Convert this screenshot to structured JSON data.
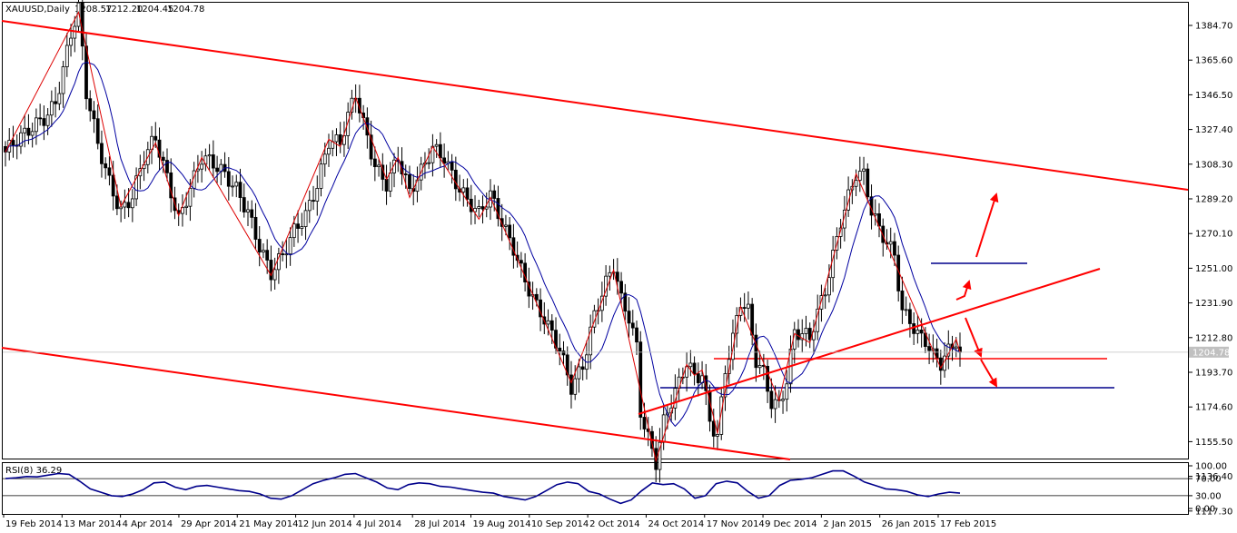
{
  "header": {
    "symbol": "XAUUSD,Daily",
    "open": "1208.57",
    "high": "1212.20",
    "low": "1204.45",
    "close": "1204.78"
  },
  "chart_data": [
    {
      "type": "candlestick",
      "title": "XAUUSD,Daily",
      "x_tick_labels": [
        "19 Feb 2014",
        "13 Mar 2014",
        "4 Apr 2014",
        "29 Apr 2014",
        "21 May 2014",
        "12 Jun 2014",
        "4 Jul 2014",
        "28 Jul 2014",
        "19 Aug 2014",
        "10 Sep 2014",
        "2 Oct 2014",
        "24 Oct 2014",
        "17 Nov 2014",
        "9 Dec 2014",
        "2 Jan 2015",
        "26 Jan 2015",
        "17 Feb 2015"
      ],
      "y_tick_labels": [
        "1384.70",
        "1365.60",
        "1346.50",
        "1327.40",
        "1308.30",
        "1289.20",
        "1270.10",
        "1251.00",
        "1231.90",
        "1212.80",
        "1193.70",
        "1174.60",
        "1155.50",
        "1136.40",
        "1117.30"
      ],
      "ylim": [
        1098,
        1403
      ],
      "last_price": "1204.78",
      "close_path": [
        [
          0,
          1315
        ],
        [
          5,
          1322
        ],
        [
          10,
          1335
        ],
        [
          13,
          1345
        ],
        [
          17,
          1380
        ],
        [
          19,
          1392
        ],
        [
          21,
          1345
        ],
        [
          24,
          1318
        ],
        [
          27,
          1300
        ],
        [
          30,
          1285
        ],
        [
          33,
          1292
        ],
        [
          36,
          1310
        ],
        [
          39,
          1320
        ],
        [
          42,
          1300
        ],
        [
          45,
          1280
        ],
        [
          48,
          1298
        ],
        [
          51,
          1312
        ],
        [
          54,
          1306
        ],
        [
          57,
          1300
        ],
        [
          60,
          1295
        ],
        [
          63,
          1285
        ],
        [
          66,
          1265
        ],
        [
          69,
          1247
        ],
        [
          72,
          1255
        ],
        [
          75,
          1270
        ],
        [
          78,
          1282
        ],
        [
          81,
          1300
        ],
        [
          84,
          1322
        ],
        [
          87,
          1318
        ],
        [
          89,
          1332
        ],
        [
          91,
          1345
        ],
        [
          93,
          1330
        ],
        [
          96,
          1310
        ],
        [
          99,
          1300
        ],
        [
          102,
          1312
        ],
        [
          105,
          1290
        ],
        [
          108,
          1302
        ],
        [
          111,
          1318
        ],
        [
          114,
          1315
        ],
        [
          117,
          1300
        ],
        [
          120,
          1287
        ],
        [
          123,
          1278
        ],
        [
          126,
          1290
        ],
        [
          129,
          1278
        ],
        [
          132,
          1265
        ],
        [
          135,
          1245
        ],
        [
          138,
          1228
        ],
        [
          141,
          1216
        ],
        [
          144,
          1206
        ],
        [
          147,
          1188
        ],
        [
          150,
          1200
        ],
        [
          153,
          1225
        ],
        [
          156,
          1240
        ],
        [
          158,
          1250
        ],
        [
          160,
          1232
        ],
        [
          162,
          1225
        ],
        [
          164,
          1210
        ],
        [
          165,
          1175
        ],
        [
          167,
          1160
        ],
        [
          169,
          1145
        ],
        [
          171,
          1165
        ],
        [
          173,
          1175
        ],
        [
          175,
          1185
        ],
        [
          177,
          1198
        ],
        [
          179,
          1192
        ],
        [
          181,
          1195
        ],
        [
          183,
          1170
        ],
        [
          185,
          1160
        ],
        [
          187,
          1195
        ],
        [
          189,
          1210
        ],
        [
          191,
          1230
        ],
        [
          193,
          1225
        ],
        [
          195,
          1200
        ],
        [
          197,
          1195
        ],
        [
          199,
          1180
        ],
        [
          201,
          1178
        ],
        [
          203,
          1190
        ],
        [
          205,
          1215
        ],
        [
          207,
          1212
        ],
        [
          209,
          1210
        ],
        [
          211,
          1225
        ],
        [
          213,
          1240
        ],
        [
          215,
          1260
        ],
        [
          217,
          1280
        ],
        [
          219,
          1292
        ],
        [
          221,
          1303
        ],
        [
          223,
          1300
        ],
        [
          225,
          1280
        ],
        [
          227,
          1270
        ],
        [
          229,
          1265
        ],
        [
          231,
          1260
        ],
        [
          233,
          1230
        ],
        [
          235,
          1225
        ],
        [
          237,
          1215
        ],
        [
          239,
          1210
        ],
        [
          241,
          1200
        ],
        [
          243,
          1196
        ],
        [
          245,
          1204
        ],
        [
          247,
          1212
        ],
        [
          248,
          1204.78
        ]
      ],
      "overlays": [
        "red zigzag line",
        "blue moving average",
        "red descending channel lines",
        "red rising trend line",
        "horizontal support levels",
        "red projection arrows"
      ]
    },
    {
      "type": "line",
      "title": "RSI(8) 36.29",
      "y_tick_labels": [
        "100.00",
        "70.00",
        "30.00",
        "0.00"
      ],
      "ylim": [
        0,
        100
      ],
      "levels": [
        70,
        30
      ],
      "values": [
        70,
        72,
        75,
        74,
        78,
        82,
        80,
        64,
        46,
        38,
        30,
        28,
        34,
        44,
        60,
        62,
        50,
        44,
        52,
        54,
        50,
        46,
        42,
        40,
        34,
        24,
        22,
        30,
        44,
        58,
        66,
        72,
        80,
        82,
        72,
        62,
        48,
        44,
        56,
        60,
        58,
        52,
        50,
        46,
        42,
        38,
        36,
        28,
        24,
        20,
        28,
        42,
        56,
        62,
        58,
        40,
        34,
        22,
        12,
        20,
        42,
        60,
        56,
        58,
        46,
        24,
        30,
        58,
        64,
        60,
        40,
        24,
        30,
        54,
        66,
        68,
        72,
        80,
        88,
        88,
        76,
        62,
        54,
        46,
        44,
        40,
        32,
        28,
        34,
        38,
        36
      ]
    }
  ],
  "colors": {
    "trend": "#ff0000",
    "level": "#00008b",
    "ma": "#0000a0",
    "zigzag": "#dd0000",
    "candle": "#000000",
    "rsi": "#00008b"
  }
}
